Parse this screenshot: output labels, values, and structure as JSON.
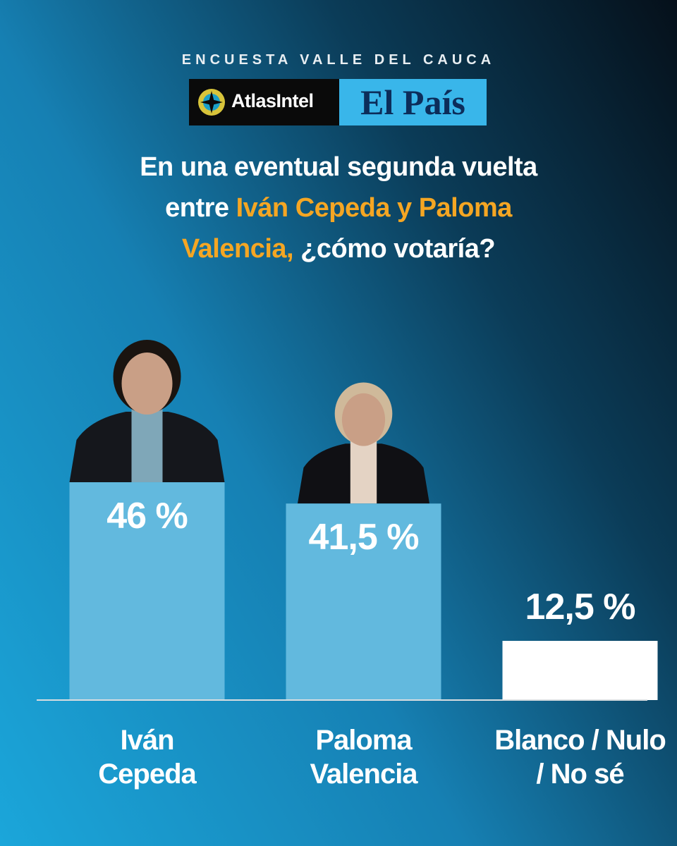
{
  "header": "ENCUESTA VALLE DEL CAUCA",
  "logos": [
    "AtlasIntel",
    "El País"
  ],
  "chart_data": {
    "type": "bar",
    "title_parts": [
      {
        "text": "En una eventual segunda vuelta entre",
        "color": "#ffffff"
      },
      {
        "text": "Iván Cepeda y Paloma Valencia,",
        "color": "#f5a623"
      },
      {
        "text": "¿cómo votaría?",
        "color": "#ffffff"
      }
    ],
    "categories": [
      "Iván\nCepeda",
      "Paloma\nValencia",
      "Blanco / Nulo\n/ No sé"
    ],
    "values": [
      46,
      41.5,
      12.5
    ],
    "value_labels": [
      "46 %",
      "41,5 %",
      "12,5 %"
    ],
    "colors": [
      "#62b9de",
      "#62b9de",
      "#ffffff"
    ],
    "ylim": [
      0,
      60
    ]
  }
}
